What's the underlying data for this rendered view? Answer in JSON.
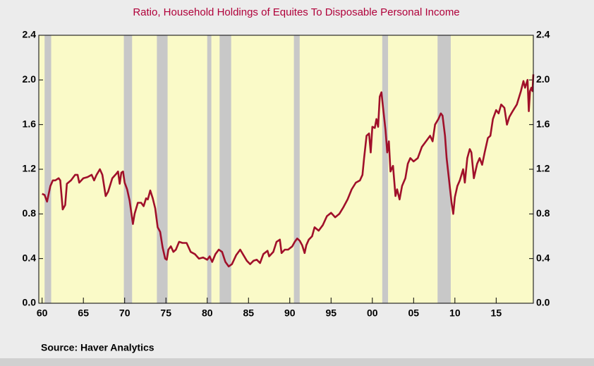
{
  "chart_data": {
    "type": "line",
    "title": "Ratio, Household Holdings of Equites To Disposable Personal Income",
    "source": "Source:  Haver Analytics",
    "color": "#a0102a",
    "shade_color": "#c8c8c8",
    "plot_color": "#fafac8",
    "xlim": [
      1959.6,
      2019.5
    ],
    "ylim": [
      0,
      2.4
    ],
    "xticks": [
      {
        "value": 1960,
        "label": "60"
      },
      {
        "value": 1965,
        "label": "65"
      },
      {
        "value": 1970,
        "label": "70"
      },
      {
        "value": 1975,
        "label": "75"
      },
      {
        "value": 1980,
        "label": "80"
      },
      {
        "value": 1985,
        "label": "85"
      },
      {
        "value": 1990,
        "label": "90"
      },
      {
        "value": 1995,
        "label": "95"
      },
      {
        "value": 2000,
        "label": "00"
      },
      {
        "value": 2005,
        "label": "05"
      },
      {
        "value": 2010,
        "label": "10"
      },
      {
        "value": 2015,
        "label": "15"
      }
    ],
    "yticks": [
      {
        "value": 0,
        "label": "0.0"
      },
      0.4,
      0.8,
      1.2,
      1.6,
      {
        "value": 2,
        "label": "2.0"
      },
      2.4
    ],
    "shaded": [
      [
        1960.3,
        1961.1
      ],
      [
        1969.9,
        1970.9
      ],
      [
        1973.9,
        1975.2
      ],
      [
        1980.0,
        1980.5
      ],
      [
        1981.5,
        1982.9
      ],
      [
        1990.5,
        1991.2
      ],
      [
        2001.2,
        2001.9
      ],
      [
        2007.9,
        2009.5
      ]
    ],
    "x": [
      1960.0,
      1960.3,
      1960.6,
      1961.0,
      1961.3,
      1961.6,
      1962.0,
      1962.2,
      1962.5,
      1962.8,
      1963.0,
      1963.5,
      1964.0,
      1964.3,
      1964.5,
      1965.0,
      1965.5,
      1966.0,
      1966.3,
      1966.6,
      1967.0,
      1967.3,
      1967.7,
      1968.0,
      1968.5,
      1969.0,
      1969.2,
      1969.4,
      1969.6,
      1969.8,
      1970.0,
      1970.3,
      1970.6,
      1971.0,
      1971.2,
      1971.6,
      1972.0,
      1972.3,
      1972.6,
      1972.8,
      1973.1,
      1973.4,
      1973.7,
      1974.0,
      1974.3,
      1974.6,
      1974.9,
      1975.1,
      1975.3,
      1975.6,
      1975.9,
      1976.2,
      1976.6,
      1977.0,
      1977.5,
      1978.0,
      1978.5,
      1979.0,
      1979.5,
      1980.0,
      1980.3,
      1980.6,
      1981.0,
      1981.4,
      1981.8,
      1982.2,
      1982.6,
      1983.0,
      1983.5,
      1984.0,
      1984.4,
      1984.8,
      1985.2,
      1985.6,
      1986.0,
      1986.4,
      1986.8,
      1987.3,
      1987.5,
      1988.0,
      1988.4,
      1988.8,
      1989.0,
      1989.4,
      1989.8,
      1990.3,
      1990.6,
      1990.9,
      1991.2,
      1991.5,
      1991.8,
      1992.0,
      1992.3,
      1992.7,
      1993.0,
      1993.5,
      1994.0,
      1994.5,
      1995.0,
      1995.5,
      1996.0,
      1996.5,
      1997.0,
      1997.5,
      1998.0,
      1998.5,
      1998.8,
      1999.0,
      1999.3,
      1999.6,
      1999.8,
      2000.0,
      2000.3,
      2000.5,
      2000.7,
      2000.9,
      2001.1,
      2001.3,
      2001.6,
      2001.8,
      2002.0,
      2002.2,
      2002.5,
      2002.8,
      2003.0,
      2003.3,
      2003.6,
      2004.0,
      2004.3,
      2004.6,
      2005.0,
      2005.5,
      2006.0,
      2006.5,
      2007.0,
      2007.3,
      2007.6,
      2008.0,
      2008.3,
      2008.5,
      2008.8,
      2009.0,
      2009.3,
      2009.6,
      2009.8,
      2010.0,
      2010.3,
      2010.6,
      2011.0,
      2011.2,
      2011.5,
      2011.8,
      2012.0,
      2012.3,
      2012.7,
      2013.0,
      2013.3,
      2013.6,
      2014.0,
      2014.3,
      2014.6,
      2015.0,
      2015.3,
      2015.6,
      2016.0,
      2016.3,
      2016.6,
      2017.0,
      2017.5,
      2018.0,
      2018.3,
      2018.5,
      2018.8,
      2018.95,
      2019.1,
      2019.25,
      2019.4,
      2019.5
    ],
    "values": [
      0.98,
      0.97,
      0.91,
      1.05,
      1.1,
      1.1,
      1.12,
      1.1,
      0.84,
      0.88,
      1.07,
      1.1,
      1.15,
      1.15,
      1.08,
      1.12,
      1.13,
      1.15,
      1.1,
      1.15,
      1.2,
      1.15,
      0.96,
      1.0,
      1.12,
      1.16,
      1.18,
      1.07,
      1.17,
      1.18,
      1.08,
      1.02,
      0.92,
      0.71,
      0.8,
      0.9,
      0.9,
      0.87,
      0.94,
      0.93,
      1.01,
      0.94,
      0.85,
      0.68,
      0.64,
      0.5,
      0.4,
      0.39,
      0.48,
      0.51,
      0.46,
      0.48,
      0.55,
      0.54,
      0.54,
      0.46,
      0.44,
      0.4,
      0.41,
      0.39,
      0.42,
      0.37,
      0.44,
      0.48,
      0.46,
      0.37,
      0.33,
      0.35,
      0.43,
      0.48,
      0.43,
      0.38,
      0.35,
      0.38,
      0.39,
      0.36,
      0.44,
      0.47,
      0.42,
      0.46,
      0.55,
      0.57,
      0.45,
      0.48,
      0.48,
      0.51,
      0.55,
      0.58,
      0.56,
      0.52,
      0.45,
      0.52,
      0.57,
      0.6,
      0.68,
      0.65,
      0.7,
      0.78,
      0.81,
      0.77,
      0.8,
      0.86,
      0.93,
      1.02,
      1.08,
      1.1,
      1.15,
      1.3,
      1.5,
      1.52,
      1.35,
      1.58,
      1.57,
      1.65,
      1.58,
      1.85,
      1.89,
      1.75,
      1.55,
      1.35,
      1.45,
      1.18,
      1.23,
      0.96,
      1.02,
      0.93,
      1.05,
      1.12,
      1.25,
      1.3,
      1.27,
      1.3,
      1.4,
      1.45,
      1.5,
      1.45,
      1.6,
      1.65,
      1.7,
      1.68,
      1.5,
      1.3,
      1.1,
      0.9,
      0.8,
      0.95,
      1.05,
      1.1,
      1.2,
      1.08,
      1.3,
      1.38,
      1.35,
      1.12,
      1.25,
      1.3,
      1.24,
      1.35,
      1.48,
      1.5,
      1.65,
      1.73,
      1.7,
      1.78,
      1.75,
      1.6,
      1.67,
      1.72,
      1.78,
      1.9,
      1.99,
      1.93,
      2.0,
      1.72,
      1.9,
      1.93,
      1.9,
      2.05
    ]
  }
}
